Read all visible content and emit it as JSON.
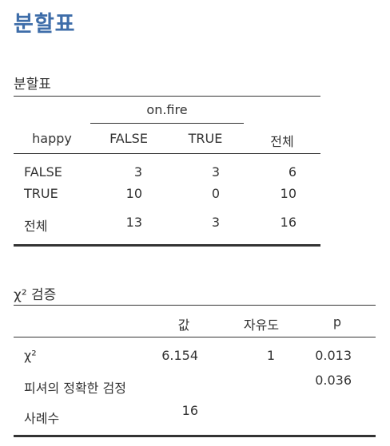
{
  "page": {
    "title": "분할표"
  },
  "contingency": {
    "title": "분할표",
    "col_group": "on.fire",
    "row_header": "happy",
    "col_headers": [
      "FALSE",
      "TRUE",
      "전체"
    ],
    "rows": [
      {
        "label": "FALSE",
        "values": [
          "3",
          "3",
          "6"
        ]
      },
      {
        "label": "TRUE",
        "values": [
          "10",
          "0",
          "10"
        ]
      }
    ],
    "total": {
      "label": "전체",
      "values": [
        "13",
        "3",
        "16"
      ]
    }
  },
  "chisq": {
    "title": "χ² 검증",
    "headers": {
      "value": "값",
      "df": "자유도",
      "p": "p"
    },
    "rows": [
      {
        "label": "χ²",
        "value": "6.154",
        "df": "1",
        "p": "0.013"
      },
      {
        "label": "피셔의 정확한 검정",
        "value": "",
        "df": "",
        "p": "0.036"
      },
      {
        "label": "사례수",
        "value": "16",
        "df": "",
        "p": ""
      }
    ]
  }
}
